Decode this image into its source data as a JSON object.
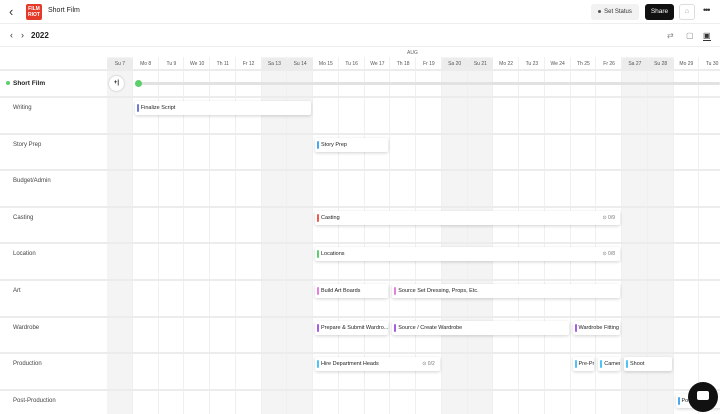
{
  "header": {
    "back_icon": "chevron-left-icon",
    "logo_text": "FILM RIOT",
    "title": "Short Film",
    "set_status": "Set Status",
    "share": "Share",
    "lock_icon": "lock-icon",
    "more_icon": "more-horizontal-icon"
  },
  "nav": {
    "year": "2022",
    "views": [
      "split-view-icon",
      "calendar-icon",
      "timeline-icon"
    ],
    "active_view": "timeline-icon"
  },
  "timeline": {
    "month": "AUG",
    "days": [
      "Su 7",
      "Mo 8",
      "Tu 9",
      "We 10",
      "Th 11",
      "Fr 12",
      "Sa 13",
      "Su 14",
      "Mo 15",
      "Tu 16",
      "We 17",
      "Th 18",
      "Fr 19",
      "Sa 20",
      "Su 21",
      "Mo 22",
      "Tu 23",
      "We 24",
      "Th 25",
      "Fr 26",
      "Sa 27",
      "Su 28",
      "Mo 29",
      "Tu 30"
    ],
    "weekends": [
      "Su 7",
      "Sa 13",
      "Su 14",
      "Sa 20",
      "Su 21",
      "Sa 27",
      "Su 28"
    ],
    "project": {
      "name": "Short Film",
      "color": "#5ccf6c",
      "add_label": "+|"
    },
    "rows": [
      {
        "label": "Writing",
        "tasks": [
          {
            "name": "Finalize Script",
            "start": 8,
            "end": 14,
            "color": "#6b7bd6"
          }
        ]
      },
      {
        "label": "Story Prep",
        "tasks": [
          {
            "name": "Story Prep",
            "start": 15,
            "end": 17,
            "color": "#4aa8f0"
          }
        ]
      },
      {
        "label": "Budget/Admin",
        "tasks": []
      },
      {
        "label": "Casting",
        "tasks": [
          {
            "name": "Casting",
            "start": 15,
            "end": 26,
            "color": "#ef5a4a",
            "progress": "0/9"
          }
        ]
      },
      {
        "label": "Location",
        "tasks": [
          {
            "name": "Locations",
            "start": 15,
            "end": 26,
            "color": "#5ccf6c",
            "progress": "0/8"
          }
        ]
      },
      {
        "label": "Art",
        "tasks": [
          {
            "name": "Build Art Boards",
            "start": 15,
            "end": 17,
            "color": "#e77ee0"
          },
          {
            "name": "Source Set Dressing, Props, Etc.",
            "start": 18,
            "end": 26,
            "color": "#e77ee0"
          }
        ]
      },
      {
        "label": "Wardrobe",
        "tasks": [
          {
            "name": "Prepare & Submit Wardro...",
            "start": 15,
            "end": 17,
            "color": "#a35de8"
          },
          {
            "name": "Source / Create Wardrobe",
            "start": 18,
            "end": 24,
            "color": "#a35de8"
          },
          {
            "name": "Wardrobe Fitting",
            "start": 25,
            "end": 26,
            "color": "#a35de8"
          }
        ]
      },
      {
        "label": "Production",
        "tasks": [
          {
            "name": "Hire Department Heads",
            "start": 15,
            "end": 19,
            "color": "#4fc3f7",
            "progress": "0/2"
          },
          {
            "name": "Pre-Pr",
            "start": 25,
            "end": 25,
            "color": "#4fc3f7"
          },
          {
            "name": "Camer",
            "start": 26,
            "end": 26,
            "color": "#4fc3f7"
          },
          {
            "name": "Shoot",
            "start": 27,
            "end": 28,
            "color": "#4fc3f7"
          }
        ]
      },
      {
        "label": "Post-Production",
        "tasks": [
          {
            "name": "Po",
            "start": 29,
            "end": 30,
            "color": "#4aa8f0"
          }
        ]
      }
    ]
  },
  "chat_icon": "chat-bubble-icon"
}
